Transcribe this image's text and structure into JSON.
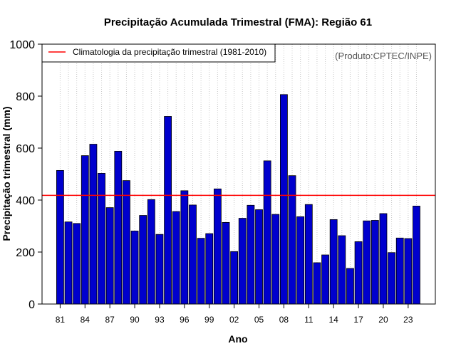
{
  "chart_data": {
    "type": "bar",
    "title": "Precipitação Acumulada Trimestral (FMA): Região 61",
    "xlabel": "Ano",
    "ylabel": "Precipitação trimestral (mm)",
    "ylim": [
      0,
      1000
    ],
    "yticks": [
      0,
      200,
      400,
      600,
      800,
      1000
    ],
    "xtick_labels": [
      "81",
      "84",
      "87",
      "90",
      "93",
      "96",
      "99",
      "02",
      "05",
      "08",
      "11",
      "14",
      "17",
      "20",
      "23"
    ],
    "categories": [
      "1981",
      "1982",
      "1983",
      "1984",
      "1985",
      "1986",
      "1987",
      "1988",
      "1989",
      "1990",
      "1991",
      "1992",
      "1993",
      "1994",
      "1995",
      "1996",
      "1997",
      "1998",
      "1999",
      "2000",
      "2001",
      "2002",
      "2003",
      "2004",
      "2005",
      "2006",
      "2007",
      "2008",
      "2009",
      "2010",
      "2011",
      "2012",
      "2013",
      "2014",
      "2015",
      "2016",
      "2017",
      "2018",
      "2019",
      "2020",
      "2021",
      "2022",
      "2023",
      "2024"
    ],
    "values": [
      514,
      316,
      310,
      571,
      615,
      503,
      371,
      588,
      475,
      281,
      341,
      402,
      268,
      722,
      356,
      436,
      381,
      253,
      271,
      443,
      314,
      202,
      330,
      380,
      363,
      551,
      345,
      806,
      494,
      336,
      383,
      159,
      189,
      325,
      263,
      137,
      240,
      320,
      322,
      348,
      198,
      254,
      252,
      377
    ],
    "bar_color": "#0000cd",
    "grid": true,
    "reference_line": {
      "value": 418,
      "color": "#ff0000",
      "label": "Climatologia da precipitação trimestral (1981-2010)"
    },
    "legend_position": "top-left",
    "credit": "(Produto:CPTEC/INPE)"
  }
}
